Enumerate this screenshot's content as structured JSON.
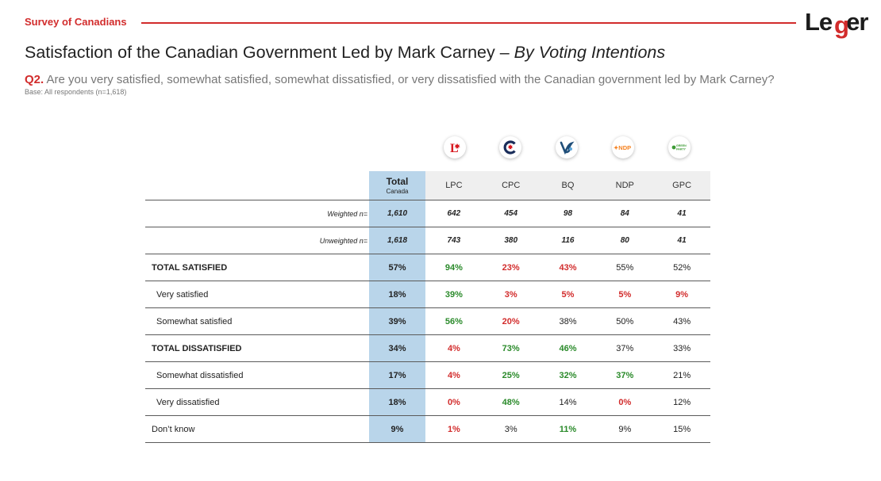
{
  "header": {
    "survey_label": "Survey of Canadians",
    "logo_left": "Le",
    "logo_g": "g",
    "logo_right": "er"
  },
  "title": {
    "main": "Satisfaction of the Canadian Government Led by Mark Carney – ",
    "emphasis": "By Voting Intentions"
  },
  "question": {
    "number": "Q2.",
    "text": " Are you very satisfied, somewhat satisfied, somewhat dissatisfied, or very dissatisfied with the Canadian government led by Mark Carney?",
    "base": "Base: All respondents (n=1,618)"
  },
  "party_logos": [
    {
      "icon": "liberal-logo-icon",
      "glyph": "L",
      "color": "#d71920"
    },
    {
      "icon": "conservative-logo-icon",
      "glyph": "C",
      "color": "#1a2d5a"
    },
    {
      "icon": "bloc-logo-icon",
      "glyph": "B",
      "color": "#1f4e79"
    },
    {
      "icon": "ndp-logo-icon",
      "glyph": "NDP",
      "color": "#f58220"
    },
    {
      "icon": "green-logo-icon",
      "glyph": "GREEN PARTY",
      "color": "#3d9b35"
    }
  ],
  "table": {
    "total_header": "Total",
    "total_subheader": "Canada",
    "columns": [
      "LPC",
      "CPC",
      "BQ",
      "NDP",
      "GPC"
    ],
    "rows": [
      {
        "label": "Weighted n=",
        "type": "n",
        "total": "1,610",
        "values": [
          "642",
          "454",
          "98",
          "84",
          "41"
        ],
        "tones": [
          "n",
          "n",
          "n",
          "n",
          "n"
        ]
      },
      {
        "label": "Unweighted n=",
        "type": "n",
        "total": "1,618",
        "values": [
          "743",
          "380",
          "116",
          "80",
          "41"
        ],
        "tones": [
          "n",
          "n",
          "n",
          "n",
          "n"
        ]
      },
      {
        "label": "TOTAL SATISFIED",
        "type": "main",
        "total": "57%",
        "values": [
          "94%",
          "23%",
          "43%",
          "55%",
          "52%"
        ],
        "tones": [
          "g",
          "r",
          "r",
          "n",
          "n"
        ]
      },
      {
        "label": "Very satisfied",
        "type": "sub",
        "total": "18%",
        "values": [
          "39%",
          "3%",
          "5%",
          "5%",
          "9%"
        ],
        "tones": [
          "g",
          "r",
          "r",
          "r",
          "r"
        ]
      },
      {
        "label": "Somewhat satisfied",
        "type": "sub",
        "total": "39%",
        "values": [
          "56%",
          "20%",
          "38%",
          "50%",
          "43%"
        ],
        "tones": [
          "g",
          "r",
          "n",
          "n",
          "n"
        ]
      },
      {
        "label": "TOTAL DISSATISFIED",
        "type": "main",
        "total": "34%",
        "values": [
          "4%",
          "73%",
          "46%",
          "37%",
          "33%"
        ],
        "tones": [
          "r",
          "g",
          "g",
          "n",
          "n"
        ]
      },
      {
        "label": "Somewhat dissatisfied",
        "type": "sub",
        "total": "17%",
        "values": [
          "4%",
          "25%",
          "32%",
          "37%",
          "21%"
        ],
        "tones": [
          "r",
          "g",
          "g",
          "g",
          "n"
        ]
      },
      {
        "label": "Very dissatisfied",
        "type": "sub",
        "total": "18%",
        "values": [
          "0%",
          "48%",
          "14%",
          "0%",
          "12%"
        ],
        "tones": [
          "r",
          "g",
          "n",
          "r",
          "n"
        ]
      },
      {
        "label": "Don’t know",
        "type": "dk",
        "total": "9%",
        "values": [
          "1%",
          "3%",
          "11%",
          "9%",
          "15%"
        ],
        "tones": [
          "r",
          "n",
          "g",
          "n",
          "n"
        ]
      }
    ]
  }
}
